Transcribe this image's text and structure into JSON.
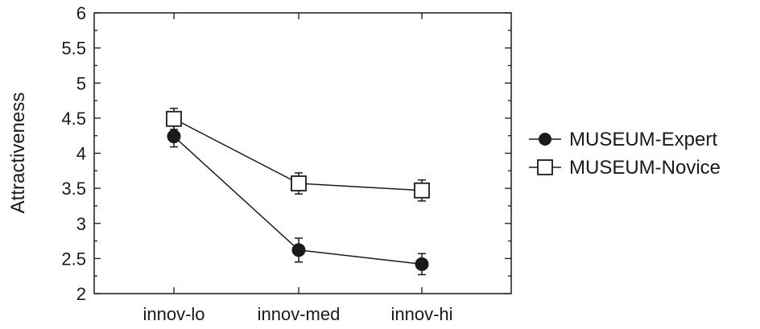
{
  "chart_data": {
    "type": "line",
    "title": "",
    "xlabel": "",
    "ylabel": "Attractiveness",
    "categories": [
      "innov-lo",
      "innov-med",
      "innov-hi"
    ],
    "ylim": [
      2,
      6
    ],
    "yticks": [
      "2",
      "2.5",
      "3",
      "3.5",
      "4",
      "4.5",
      "5",
      "5.5",
      "6"
    ],
    "grid": false,
    "legend_position": "right",
    "series": [
      {
        "name": "MUSEUM-Expert",
        "marker": "filled-circle",
        "color": "#1a1a1a",
        "values": [
          4.24,
          2.62,
          2.42
        ],
        "error": [
          0.15,
          0.17,
          0.15
        ]
      },
      {
        "name": "MUSEUM-Novice",
        "marker": "open-square",
        "color": "#1a1a1a",
        "values": [
          4.49,
          3.57,
          3.47
        ],
        "error": [
          0.15,
          0.15,
          0.15
        ]
      }
    ]
  }
}
